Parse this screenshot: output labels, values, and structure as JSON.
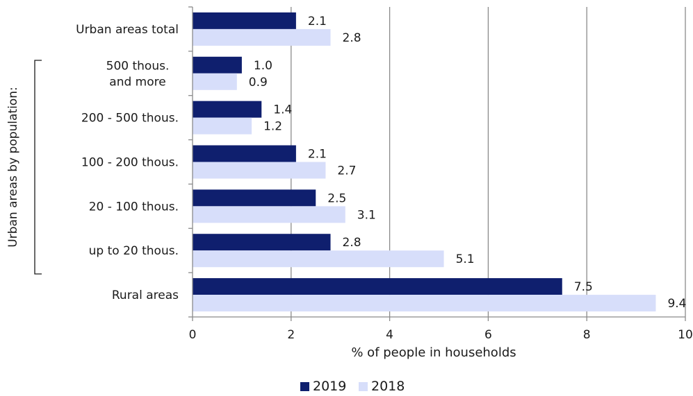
{
  "chart_data": {
    "type": "bar",
    "orientation": "horizontal",
    "categories": [
      "Urban areas total",
      "500 thous.\nand more",
      "200 - 500 thous.",
      "100 - 200 thous.",
      "20 - 100 thous.",
      "up to 20 thous.",
      "Rural areas"
    ],
    "series": [
      {
        "name": "2019",
        "color": "#0f1f6e",
        "values": [
          2.1,
          1.0,
          1.4,
          2.1,
          2.5,
          2.8,
          7.5
        ],
        "labels": [
          "2.1",
          "1.0",
          "1.4",
          "2.1",
          "2.5",
          "2.8",
          "7.5"
        ]
      },
      {
        "name": "2018",
        "color": "#d7defa",
        "values": [
          2.8,
          0.9,
          1.2,
          2.7,
          3.1,
          5.1,
          9.4
        ],
        "labels": [
          "2.8",
          "0.9",
          "1.2",
          "2.7",
          "3.1",
          "5.1",
          "9.4"
        ]
      }
    ],
    "xlabel": "% of people in households",
    "ylabel": "",
    "group_label": "Urban areas by population:",
    "xlim": [
      0,
      10
    ],
    "xticks": [
      0,
      2,
      4,
      6,
      8,
      10
    ],
    "xtick_labels": [
      "0",
      "2",
      "4",
      "6",
      "8",
      "10"
    ],
    "grid": "vertical",
    "legend_position": "bottom-center"
  }
}
